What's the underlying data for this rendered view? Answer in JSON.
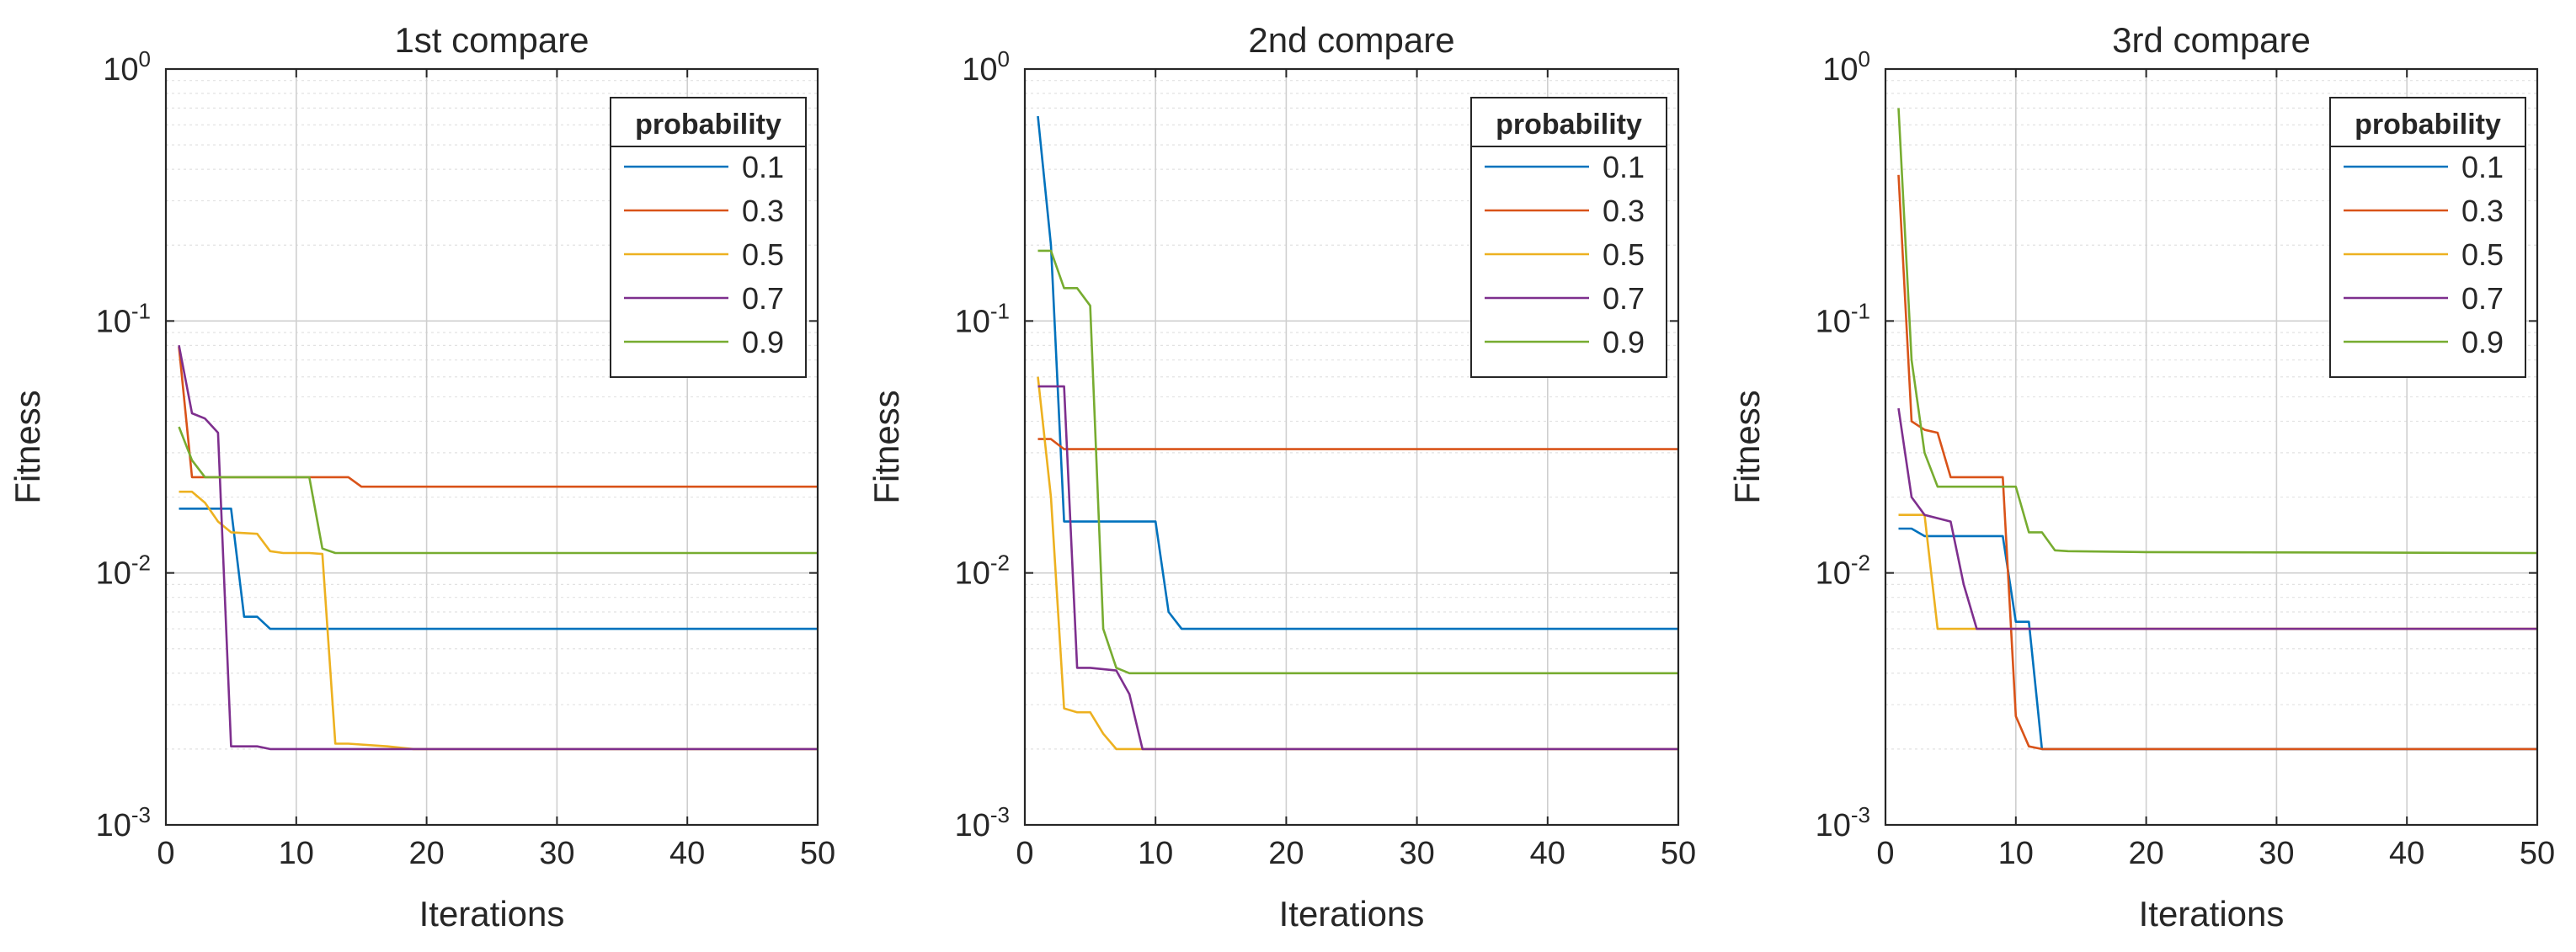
{
  "chart_data": [
    {
      "type": "line",
      "title": "1st compare",
      "xlabel": "Iterations",
      "ylabel": "Fitness",
      "yscale": "log",
      "xlim": [
        0,
        50
      ],
      "ylim": [
        0.001,
        1
      ],
      "xticks": [
        0,
        10,
        20,
        30,
        40,
        50
      ],
      "yticks": [
        {
          "base": "10",
          "exp": "0"
        },
        {
          "base": "10",
          "exp": "-1"
        },
        {
          "base": "10",
          "exp": "-2"
        },
        {
          "base": "10",
          "exp": "-3"
        }
      ],
      "grid": true,
      "legend": {
        "title": "probability",
        "location": "top-right"
      },
      "series": [
        {
          "name": "0.1",
          "color": "#0072BD",
          "x": [
            1,
            4,
            5,
            6,
            7,
            8,
            50
          ],
          "y": [
            0.018,
            0.018,
            0.018,
            0.0067,
            0.0067,
            0.006,
            0.006
          ]
        },
        {
          "name": "0.3",
          "color": "#D95319",
          "x": [
            1,
            2,
            14,
            15,
            16,
            50
          ],
          "y": [
            0.079,
            0.024,
            0.024,
            0.022,
            0.022,
            0.022
          ]
        },
        {
          "name": "0.5",
          "color": "#EDB120",
          "x": [
            1,
            2,
            3,
            4,
            5,
            7,
            8,
            9,
            11,
            12,
            13,
            14,
            17,
            19,
            20,
            50
          ],
          "y": [
            0.021,
            0.021,
            0.019,
            0.016,
            0.0145,
            0.0143,
            0.0122,
            0.012,
            0.012,
            0.0119,
            0.0021,
            0.0021,
            0.00205,
            0.002,
            0.002,
            0.002
          ]
        },
        {
          "name": "0.7",
          "color": "#7E2F8E",
          "x": [
            1,
            2,
            3,
            4,
            5,
            7,
            8,
            50
          ],
          "y": [
            0.08,
            0.043,
            0.041,
            0.036,
            0.00205,
            0.00205,
            0.002,
            0.002
          ]
        },
        {
          "name": "0.9",
          "color": "#77AC30",
          "x": [
            1,
            2,
            3,
            10,
            11,
            12,
            13,
            50
          ],
          "y": [
            0.038,
            0.028,
            0.024,
            0.024,
            0.024,
            0.0125,
            0.012,
            0.012
          ]
        }
      ]
    },
    {
      "type": "line",
      "title": "2nd compare",
      "xlabel": "Iterations",
      "ylabel": "Fitness",
      "yscale": "log",
      "xlim": [
        0,
        50
      ],
      "ylim": [
        0.001,
        1
      ],
      "xticks": [
        0,
        10,
        20,
        30,
        40,
        50
      ],
      "yticks": [
        {
          "base": "10",
          "exp": "0"
        },
        {
          "base": "10",
          "exp": "-1"
        },
        {
          "base": "10",
          "exp": "-2"
        },
        {
          "base": "10",
          "exp": "-3"
        }
      ],
      "grid": true,
      "legend": {
        "title": "probability",
        "location": "top-right"
      },
      "series": [
        {
          "name": "0.1",
          "color": "#0072BD",
          "x": [
            1,
            2,
            3,
            10,
            11,
            12,
            50
          ],
          "y": [
            0.65,
            0.2,
            0.016,
            0.016,
            0.007,
            0.006,
            0.006
          ]
        },
        {
          "name": "0.3",
          "color": "#D95319",
          "x": [
            1,
            2,
            3,
            50
          ],
          "y": [
            0.034,
            0.034,
            0.031,
            0.031
          ]
        },
        {
          "name": "0.5",
          "color": "#EDB120",
          "x": [
            1,
            2,
            3,
            4,
            5,
            6,
            7,
            8,
            9,
            50
          ],
          "y": [
            0.06,
            0.02,
            0.0029,
            0.0028,
            0.0028,
            0.0023,
            0.002,
            0.002,
            0.002,
            0.002
          ]
        },
        {
          "name": "0.7",
          "color": "#7E2F8E",
          "x": [
            1,
            3,
            4,
            5,
            7,
            8,
            9,
            50
          ],
          "y": [
            0.055,
            0.055,
            0.0042,
            0.0042,
            0.0041,
            0.0033,
            0.002,
            0.002
          ]
        },
        {
          "name": "0.9",
          "color": "#77AC30",
          "x": [
            1,
            2,
            3,
            4,
            5,
            6,
            7,
            8,
            50
          ],
          "y": [
            0.19,
            0.19,
            0.135,
            0.135,
            0.115,
            0.006,
            0.0042,
            0.004,
            0.004
          ]
        }
      ]
    },
    {
      "type": "line",
      "title": "3rd compare",
      "xlabel": "Iterations",
      "ylabel": "Fitness",
      "yscale": "log",
      "xlim": [
        0,
        50
      ],
      "ylim": [
        0.001,
        1
      ],
      "xticks": [
        0,
        10,
        20,
        30,
        40,
        50
      ],
      "yticks": [
        {
          "base": "10",
          "exp": "0"
        },
        {
          "base": "10",
          "exp": "-1"
        },
        {
          "base": "10",
          "exp": "-2"
        },
        {
          "base": "10",
          "exp": "-3"
        }
      ],
      "grid": true,
      "legend": {
        "title": "probability",
        "location": "top-right"
      },
      "series": [
        {
          "name": "0.1",
          "color": "#0072BD",
          "x": [
            1,
            2,
            3,
            9,
            10,
            11,
            12,
            50
          ],
          "y": [
            0.015,
            0.015,
            0.014,
            0.014,
            0.0064,
            0.0064,
            0.002,
            0.002
          ]
        },
        {
          "name": "0.3",
          "color": "#D95319",
          "x": [
            1,
            2,
            3,
            4,
            5,
            9,
            10,
            11,
            12,
            50
          ],
          "y": [
            0.38,
            0.04,
            0.037,
            0.036,
            0.024,
            0.024,
            0.0027,
            0.00205,
            0.002,
            0.002
          ]
        },
        {
          "name": "0.5",
          "color": "#EDB120",
          "x": [
            1,
            3,
            4,
            5,
            6,
            7,
            50
          ],
          "y": [
            0.017,
            0.017,
            0.006,
            0.006,
            0.006,
            0.006,
            0.006
          ]
        },
        {
          "name": "0.7",
          "color": "#7E2F8E",
          "x": [
            1,
            2,
            3,
            5,
            6,
            7,
            50
          ],
          "y": [
            0.045,
            0.02,
            0.017,
            0.016,
            0.009,
            0.006,
            0.006
          ]
        },
        {
          "name": "0.9",
          "color": "#77AC30",
          "x": [
            1,
            2,
            3,
            4,
            10,
            11,
            12,
            13,
            14,
            20,
            50
          ],
          "y": [
            0.7,
            0.07,
            0.03,
            0.022,
            0.022,
            0.0145,
            0.0145,
            0.0123,
            0.0122,
            0.0121,
            0.012
          ]
        }
      ]
    }
  ]
}
